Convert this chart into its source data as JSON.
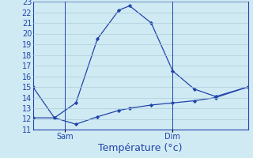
{
  "title": "",
  "xlabel": "Température (°c)",
  "ylabel": "",
  "ylim": [
    11,
    23
  ],
  "xlim": [
    0,
    10
  ],
  "yticks": [
    11,
    12,
    13,
    14,
    15,
    16,
    17,
    18,
    19,
    20,
    21,
    22,
    23
  ],
  "x_values": [
    0,
    1,
    2,
    3,
    4,
    4.5,
    5.5,
    6.5,
    7.5,
    8.5,
    10
  ],
  "line_max": [
    15.0,
    12.1,
    13.5,
    19.5,
    22.2,
    22.6,
    21.0,
    16.5,
    14.8,
    14.1,
    15.0
  ],
  "line_min": [
    12.1,
    12.1,
    11.5,
    12.2,
    12.8,
    13.0,
    13.3,
    13.5,
    13.7,
    14.0,
    15.0
  ],
  "line_color": "#2244aa",
  "bg_color": "#d0eaf4",
  "plot_bg": "#d0eaf4",
  "grid_color": "#aaccd8",
  "sam_x": 1.5,
  "dim_x": 6.5,
  "tick_label_color": "#2244aa",
  "xlabel_color": "#2244aa",
  "xlabel_fontsize": 9,
  "tick_fontsize": 7
}
